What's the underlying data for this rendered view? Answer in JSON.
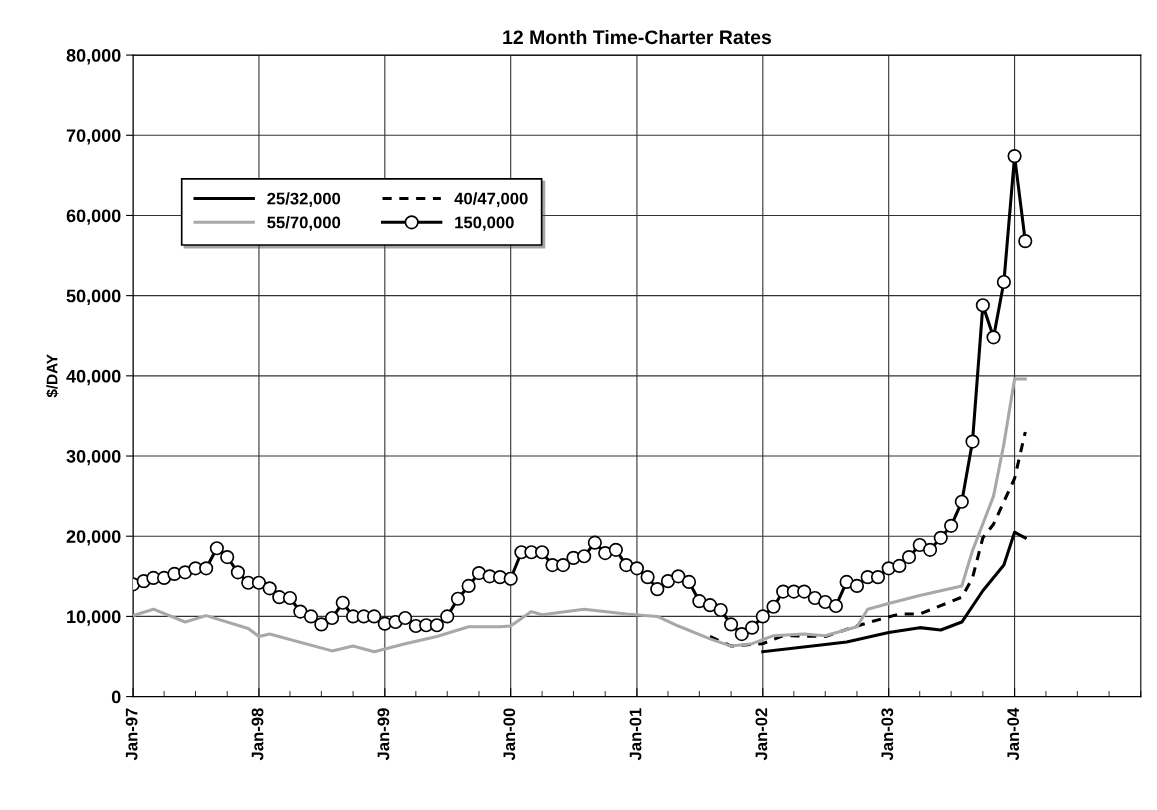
{
  "chart_data": {
    "type": "line",
    "title": "12 Month Time-Charter Rates",
    "ylabel": "$/DAY",
    "xlim": [
      "1997-01",
      "2005-01"
    ],
    "xticks": [
      {
        "value": "1997-01",
        "label": "Jan-97"
      },
      {
        "value": "1997-04",
        "label": null
      },
      {
        "value": "1997-07",
        "label": null
      },
      {
        "value": "1997-10",
        "label": null
      },
      {
        "value": "1998-01",
        "label": "Jan-98"
      },
      {
        "value": "1998-04",
        "label": null
      },
      {
        "value": "1998-07",
        "label": null
      },
      {
        "value": "1998-10",
        "label": null
      },
      {
        "value": "1999-01",
        "label": "Jan-99"
      },
      {
        "value": "1999-04",
        "label": null
      },
      {
        "value": "1999-07",
        "label": null
      },
      {
        "value": "1999-10",
        "label": null
      },
      {
        "value": "2000-01",
        "label": "Jan-00"
      },
      {
        "value": "2000-04",
        "label": null
      },
      {
        "value": "2000-07",
        "label": null
      },
      {
        "value": "2000-10",
        "label": null
      },
      {
        "value": "2001-01",
        "label": "Jan-01"
      },
      {
        "value": "2001-04",
        "label": null
      },
      {
        "value": "2001-07",
        "label": null
      },
      {
        "value": "2001-10",
        "label": null
      },
      {
        "value": "2002-01",
        "label": "Jan-02"
      },
      {
        "value": "2002-04",
        "label": null
      },
      {
        "value": "2002-07",
        "label": null
      },
      {
        "value": "2002-10",
        "label": null
      },
      {
        "value": "2003-01",
        "label": "Jan-03"
      },
      {
        "value": "2003-04",
        "label": null
      },
      {
        "value": "2003-07",
        "label": null
      },
      {
        "value": "2003-10",
        "label": null
      },
      {
        "value": "2004-01",
        "label": "Jan-04"
      },
      {
        "value": "2004-04",
        "label": null
      },
      {
        "value": "2004-07",
        "label": null
      },
      {
        "value": "2004-10",
        "label": null
      },
      {
        "value": "2005-01",
        "label": null
      }
    ],
    "ylim": [
      0,
      80000
    ],
    "yticks": [
      0,
      {
        "value": 10000,
        "label": "10,000"
      },
      {
        "value": 20000,
        "label": "20,000"
      },
      {
        "value": 30000,
        "label": "30,000"
      },
      {
        "value": 40000,
        "label": "40,000"
      },
      {
        "value": 50000,
        "label": "50,000"
      },
      {
        "value": 60000,
        "label": "60,000"
      },
      {
        "value": 70000,
        "label": "70,000"
      },
      {
        "value": 80000,
        "label": "80,000"
      }
    ],
    "grid": true,
    "legend": "top left",
    "series": [
      {
        "name": "25/32,000",
        "color": "#000000",
        "line_style": "solid",
        "marker": "none",
        "x": [
          "2002-01",
          "2002-07",
          "2002-09",
          "2003-01",
          "2003-04",
          "2003-06",
          "2003-08",
          "2003-10",
          "2003-12",
          "2004-01",
          "2004-02"
        ],
        "values": [
          5600,
          6500,
          6800,
          8000,
          8600,
          8300,
          9300,
          13200,
          16400,
          20500,
          19800
        ]
      },
      {
        "name": "40/47,000",
        "color": "#000000",
        "line_style": "dashed",
        "marker": "none",
        "x": [
          "2001-08",
          "2001-10",
          "2002-01",
          "2002-03",
          "2002-07",
          "2002-10",
          "2002-11",
          "2003-02",
          "2003-04",
          "2003-08",
          "2003-09",
          "2003-10",
          "2003-11",
          "2004-01",
          "2004-02"
        ],
        "values": [
          7500,
          6300,
          6600,
          7600,
          7500,
          8800,
          9200,
          10300,
          10300,
          12400,
          14800,
          19800,
          21500,
          27200,
          33000
        ]
      },
      {
        "name": "55/70,000",
        "color": "#a8a8a8",
        "line_style": "solid",
        "marker": "none",
        "x": [
          "1997-01",
          "1997-03",
          "1997-06",
          "1997-08",
          "1997-12",
          "1998-01",
          "1998-02",
          "1998-08",
          "1998-10",
          "1998-12",
          "1999-03",
          "1999-06",
          "1999-09",
          "1999-12",
          "2000-01",
          "2000-03",
          "2000-04",
          "2000-08",
          "2000-12",
          "2001-03",
          "2001-05",
          "2001-08",
          "2001-10",
          "2001-12",
          "2002-02",
          "2002-05",
          "2002-07",
          "2002-10",
          "2002-11",
          "2003-01",
          "2003-04",
          "2003-06",
          "2003-08",
          "2003-09",
          "2003-11",
          "2003-12",
          "2004-01",
          "2004-02"
        ],
        "values": [
          10100,
          10900,
          9300,
          10100,
          8500,
          7500,
          7800,
          5700,
          6300,
          5600,
          6600,
          7500,
          8700,
          8700,
          8800,
          10600,
          10200,
          10900,
          10300,
          10000,
          8800,
          7200,
          6300,
          6600,
          7600,
          7800,
          7600,
          8700,
          10900,
          11600,
          12600,
          13200,
          13800,
          18200,
          25000,
          31500,
          39600,
          39600
        ]
      },
      {
        "name": "150,000",
        "color": "#000000",
        "line_style": "solid",
        "marker": "circle",
        "x": [
          "1997-01",
          "1997-02",
          "1997-03",
          "1997-04",
          "1997-05",
          "1997-06",
          "1997-07",
          "1997-08",
          "1997-09",
          "1997-10",
          "1997-11",
          "1997-12",
          "1998-01",
          "1998-02",
          "1998-03",
          "1998-04",
          "1998-05",
          "1998-06",
          "1998-07",
          "1998-08",
          "1998-09",
          "1998-10",
          "1998-11",
          "1998-12",
          "1999-01",
          "1999-02",
          "1999-03",
          "1999-04",
          "1999-05",
          "1999-06",
          "1999-07",
          "1999-08",
          "1999-09",
          "1999-10",
          "1999-11",
          "1999-12",
          "2000-01",
          "2000-02",
          "2000-03",
          "2000-04",
          "2000-05",
          "2000-06",
          "2000-07",
          "2000-08",
          "2000-09",
          "2000-10",
          "2000-11",
          "2000-12",
          "2001-01",
          "2001-02",
          "2001-03",
          "2001-04",
          "2001-05",
          "2001-06",
          "2001-07",
          "2001-08",
          "2001-09",
          "2001-10",
          "2001-11",
          "2001-12",
          "2002-01",
          "2002-02",
          "2002-03",
          "2002-04",
          "2002-05",
          "2002-06",
          "2002-07",
          "2002-08",
          "2002-09",
          "2002-10",
          "2002-11",
          "2002-12",
          "2003-01",
          "2003-02",
          "2003-03",
          "2003-04",
          "2003-05",
          "2003-06",
          "2003-07",
          "2003-08",
          "2003-09",
          "2003-10",
          "2003-11",
          "2003-12",
          "2004-01",
          "2004-02"
        ],
        "values": [
          14000,
          14400,
          14800,
          14800,
          15300,
          15500,
          16000,
          16000,
          18500,
          17400,
          15500,
          14200,
          14200,
          13500,
          12400,
          12300,
          10600,
          10000,
          9000,
          9800,
          11700,
          10000,
          10000,
          10000,
          9100,
          9300,
          9800,
          8800,
          8900,
          8900,
          10000,
          12200,
          13800,
          15400,
          15000,
          14900,
          14700,
          18000,
          18000,
          18000,
          16400,
          16400,
          17300,
          17500,
          19200,
          17900,
          18300,
          16400,
          16000,
          14900,
          13400,
          14400,
          15000,
          14300,
          11900,
          11400,
          10800,
          9000,
          7800,
          8600,
          10000,
          11200,
          13100,
          13100,
          13100,
          12300,
          11800,
          11300,
          14300,
          13800,
          14900,
          14900,
          16000,
          16300,
          17400,
          18900,
          18300,
          19800,
          21300,
          24300,
          31800,
          48800,
          44800,
          51700,
          67400,
          56800
        ]
      }
    ]
  }
}
